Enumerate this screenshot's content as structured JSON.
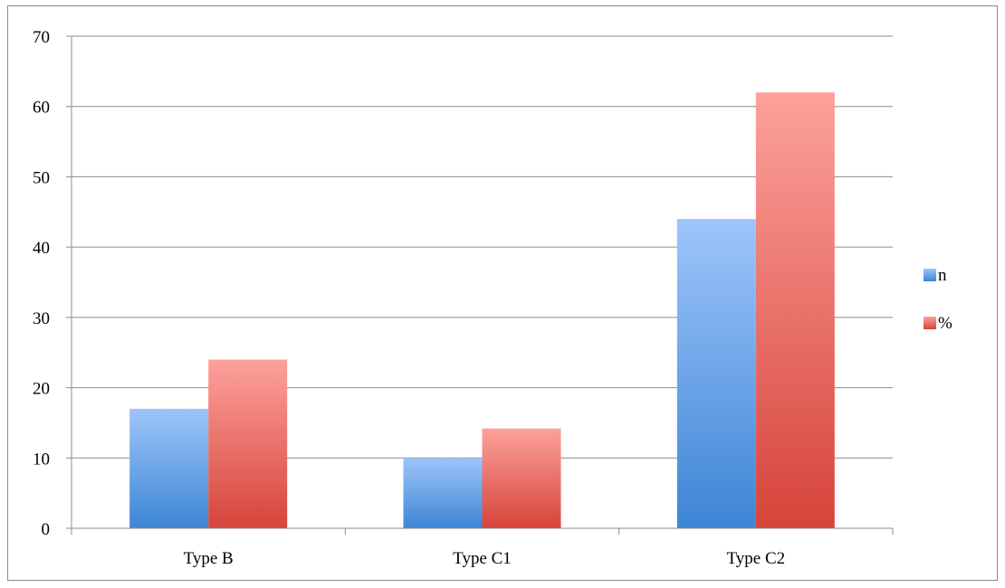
{
  "chart_data": {
    "type": "bar",
    "title": "",
    "xlabel": "",
    "ylabel": "",
    "categories": [
      "Type B",
      "Type C1",
      "Type C2"
    ],
    "series": [
      {
        "name": "n",
        "values": [
          17,
          10,
          44
        ],
        "color_top": "#9ec5fb",
        "color_bottom": "#3d85d5"
      },
      {
        "name": "%",
        "values": [
          24,
          14.2,
          62
        ],
        "color_top": "#fca19b",
        "color_bottom": "#d6443a"
      }
    ],
    "ylim": [
      0,
      70
    ],
    "yticks": [
      0,
      10,
      20,
      30,
      40,
      50,
      60,
      70
    ],
    "grid": true,
    "legend_position": "right"
  }
}
